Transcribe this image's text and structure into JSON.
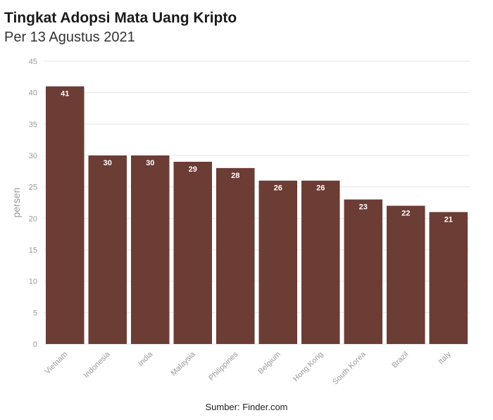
{
  "title": "Tingkat Adopsi Mata Uang Kripto",
  "subtitle": "Per 13 Agustus 2021",
  "source": "Sumber: Finder.com",
  "colors": {
    "bar": "#6b3d35",
    "grid": "#e6e6e6",
    "tick": "#9a9a9a"
  },
  "chart_data": {
    "type": "bar",
    "categories": [
      "Vietnam",
      "Indonesia",
      "India",
      "Malaysia",
      "Philippines",
      "Belgium",
      "Hong Kong",
      "South Korea",
      "Brazil",
      "Italy"
    ],
    "values": [
      41,
      30,
      30,
      29,
      28,
      26,
      26,
      23,
      22,
      21
    ],
    "data_labels": [
      "41",
      "30",
      "30",
      "29",
      "28",
      "26",
      "26",
      "23",
      "22",
      "21"
    ],
    "ylabel": "persen",
    "xlabel": "",
    "ylim": [
      0,
      45
    ],
    "yticks": [
      0,
      5,
      10,
      15,
      20,
      25,
      30,
      35,
      40,
      45
    ],
    "ytick_labels": [
      "0",
      "5",
      "10",
      "15",
      "20",
      "25",
      "30",
      "35",
      "40",
      "45"
    ],
    "grid": true
  }
}
